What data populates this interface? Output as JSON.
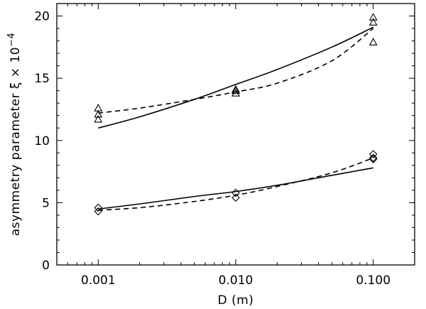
{
  "chart_data": {
    "type": "scatter",
    "title": "",
    "xlabel": "D (m)",
    "ylabel": "asymmetry parameter ξ × 10",
    "ylabel_exponent": "−4",
    "x_scale": "log",
    "xlim": [
      0.0005,
      0.2
    ],
    "ylim": [
      0,
      21
    ],
    "x_ticks": [
      0.001,
      0.01,
      0.1
    ],
    "x_tick_labels": [
      "0.001",
      "0.010",
      "0.100"
    ],
    "y_ticks": [
      0,
      5,
      10,
      15,
      20
    ],
    "y_tick_labels": [
      "0",
      "5",
      "10",
      "15",
      "20"
    ],
    "grid": false,
    "legend": "none",
    "series": [
      {
        "marker": "triangle",
        "points": [
          {
            "x": 0.001,
            "y": 11.7
          },
          {
            "x": 0.001,
            "y": 12.1
          },
          {
            "x": 0.001,
            "y": 12.6
          },
          {
            "x": 0.01,
            "y": 13.8
          },
          {
            "x": 0.01,
            "y": 14.0
          },
          {
            "x": 0.01,
            "y": 14.1
          },
          {
            "x": 0.1,
            "y": 17.9
          },
          {
            "x": 0.1,
            "y": 19.5
          },
          {
            "x": 0.1,
            "y": 19.9
          }
        ]
      },
      {
        "marker": "diamond",
        "points": [
          {
            "x": 0.001,
            "y": 4.3
          },
          {
            "x": 0.001,
            "y": 4.6
          },
          {
            "x": 0.01,
            "y": 5.4
          },
          {
            "x": 0.01,
            "y": 5.8
          },
          {
            "x": 0.1,
            "y": 8.5
          },
          {
            "x": 0.1,
            "y": 8.6
          },
          {
            "x": 0.1,
            "y": 8.9
          }
        ]
      }
    ],
    "curves": [
      {
        "style": "solid",
        "x": [
          0.001,
          0.002,
          0.005,
          0.01,
          0.02,
          0.05,
          0.1
        ],
        "y": [
          11.0,
          11.9,
          13.3,
          14.5,
          15.7,
          17.5,
          19.1
        ]
      },
      {
        "style": "dashed",
        "x": [
          0.001,
          0.002,
          0.005,
          0.01,
          0.02,
          0.05,
          0.1
        ],
        "y": [
          12.2,
          12.6,
          13.3,
          13.9,
          14.6,
          16.4,
          19.0
        ]
      },
      {
        "style": "solid",
        "x": [
          0.001,
          0.002,
          0.005,
          0.01,
          0.02,
          0.05,
          0.1
        ],
        "y": [
          4.5,
          4.9,
          5.5,
          5.9,
          6.4,
          7.2,
          7.8
        ]
      },
      {
        "style": "dashed",
        "x": [
          0.001,
          0.002,
          0.005,
          0.01,
          0.02,
          0.05,
          0.1
        ],
        "y": [
          4.4,
          4.6,
          5.1,
          5.6,
          6.3,
          7.4,
          8.6
        ]
      }
    ]
  }
}
